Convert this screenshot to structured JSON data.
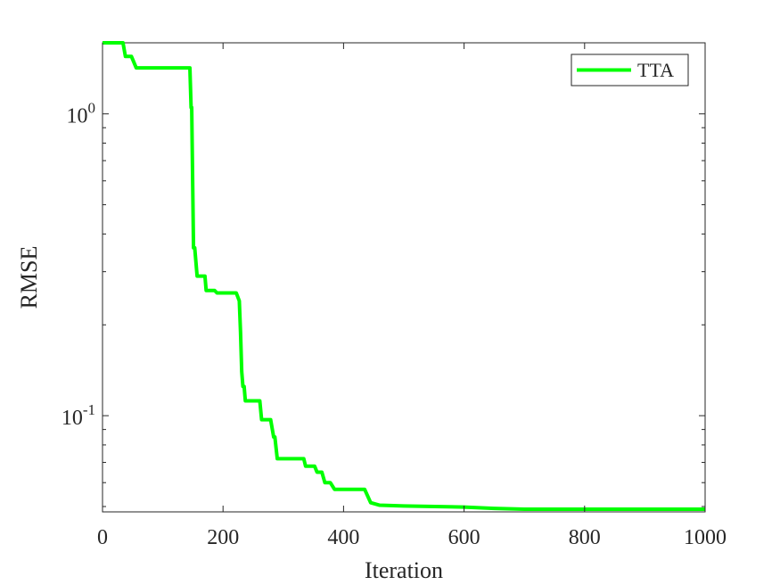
{
  "chart_data": {
    "type": "line",
    "title": "",
    "xlabel": "Iteration",
    "ylabel": "RMSE",
    "xlim": [
      0,
      1000
    ],
    "ylim": [
      0.048,
      1.72
    ],
    "yscale": "log",
    "grid": false,
    "legend_position": "top-right",
    "x_ticks": [
      {
        "value": 0,
        "label": "0"
      },
      {
        "value": 200,
        "label": "200"
      },
      {
        "value": 400,
        "label": "400"
      },
      {
        "value": 600,
        "label": "600"
      },
      {
        "value": 800,
        "label": "800"
      },
      {
        "value": 1000,
        "label": "1000"
      }
    ],
    "y_ticks": [
      {
        "value": 1,
        "base": "10",
        "exp": "0"
      },
      {
        "value": 0.1,
        "base": "10",
        "exp": "-1"
      }
    ],
    "series": [
      {
        "name": "TTA",
        "color": "#00ff00",
        "x": [
          0,
          34,
          38,
          48,
          56,
          60,
          145,
          147,
          148,
          151,
          153,
          157,
          159,
          170,
          172,
          186,
          190,
          222,
          227,
          229,
          231,
          233,
          235,
          237,
          239,
          261,
          264,
          279,
          284,
          286,
          290,
          334,
          337,
          352,
          356,
          364,
          369,
          378,
          385,
          392,
          400,
          435,
          445,
          460,
          500,
          600,
          650,
          700,
          1000
        ],
        "y": [
          1.72,
          1.72,
          1.55,
          1.55,
          1.42,
          1.42,
          1.42,
          1.05,
          1.05,
          0.36,
          0.36,
          0.29,
          0.29,
          0.29,
          0.26,
          0.26,
          0.255,
          0.255,
          0.24,
          0.19,
          0.14,
          0.125,
          0.125,
          0.112,
          0.112,
          0.112,
          0.097,
          0.097,
          0.085,
          0.085,
          0.072,
          0.072,
          0.068,
          0.068,
          0.065,
          0.065,
          0.06,
          0.06,
          0.057,
          0.057,
          0.057,
          0.057,
          0.0515,
          0.0505,
          0.0502,
          0.0498,
          0.0493,
          0.049,
          0.049
        ]
      }
    ]
  }
}
